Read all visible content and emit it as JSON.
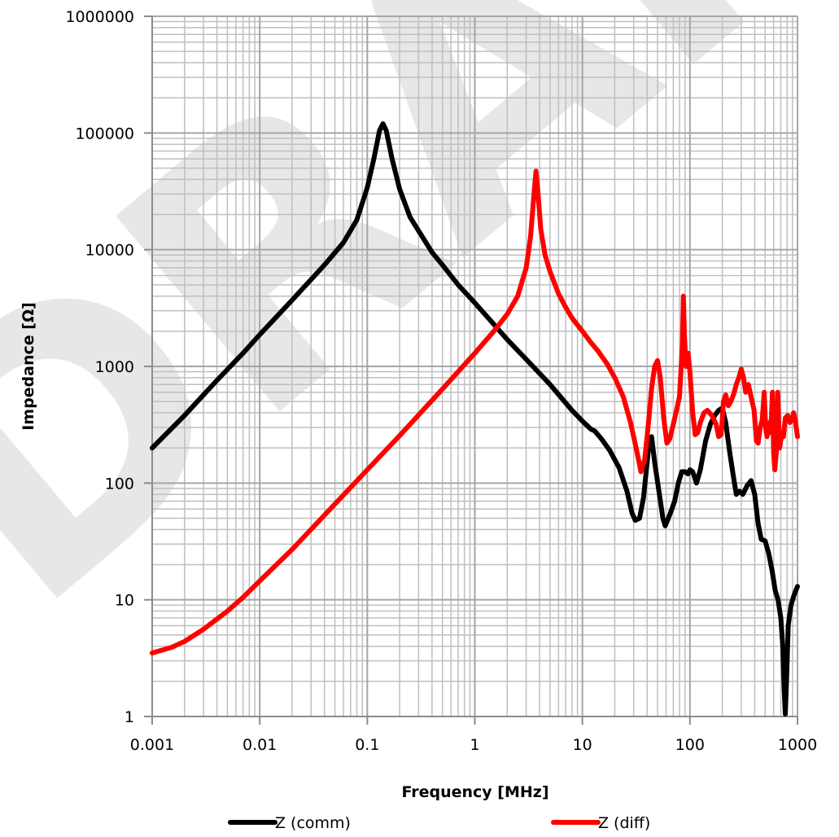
{
  "watermark": "DRAFT",
  "chart_data": {
    "type": "line",
    "xlabel": "Frequency [MHz]",
    "ylabel": "Impedance [Ω]",
    "xscale": "log",
    "yscale": "log",
    "xlim": [
      0.001,
      1000
    ],
    "ylim": [
      1,
      1000000
    ],
    "grid": true,
    "legend_position": "bottom",
    "x_ticks": [
      0.001,
      0.01,
      0.1,
      1,
      10,
      100,
      1000
    ],
    "x_tick_labels": [
      "0.001",
      "0.01",
      "0.1",
      "1",
      "10",
      "100",
      "1000"
    ],
    "y_ticks": [
      1,
      10,
      100,
      1000,
      10000,
      100000,
      1000000
    ],
    "y_tick_labels": [
      "1",
      "10",
      "100",
      "1000",
      "10000",
      "100000",
      "1000000"
    ],
    "series": [
      {
        "name": "Z (comm)",
        "color": "#000000",
        "points": [
          [
            0.001,
            200
          ],
          [
            0.002,
            380
          ],
          [
            0.004,
            760
          ],
          [
            0.007,
            1300
          ],
          [
            0.01,
            1870
          ],
          [
            0.02,
            3700
          ],
          [
            0.04,
            7400
          ],
          [
            0.06,
            11500
          ],
          [
            0.08,
            18000
          ],
          [
            0.1,
            34000
          ],
          [
            0.115,
            60000
          ],
          [
            0.13,
            105000
          ],
          [
            0.14,
            120000
          ],
          [
            0.15,
            105000
          ],
          [
            0.17,
            60000
          ],
          [
            0.2,
            33000
          ],
          [
            0.25,
            19000
          ],
          [
            0.3,
            14500
          ],
          [
            0.4,
            9500
          ],
          [
            0.5,
            7400
          ],
          [
            0.7,
            5000
          ],
          [
            1,
            3500
          ],
          [
            1.5,
            2300
          ],
          [
            2,
            1700
          ],
          [
            3,
            1150
          ],
          [
            5,
            700
          ],
          [
            8,
            420
          ],
          [
            10,
            340
          ],
          [
            12,
            290
          ],
          [
            13,
            280
          ],
          [
            15,
            240
          ],
          [
            18,
            190
          ],
          [
            22,
            135
          ],
          [
            26,
            85
          ],
          [
            29,
            55
          ],
          [
            31,
            48
          ],
          [
            34,
            50
          ],
          [
            37,
            75
          ],
          [
            40,
            150
          ],
          [
            42,
            230
          ],
          [
            44,
            250
          ],
          [
            47,
            150
          ],
          [
            52,
            80
          ],
          [
            56,
            50
          ],
          [
            59,
            43
          ],
          [
            63,
            50
          ],
          [
            68,
            60
          ],
          [
            72,
            70
          ],
          [
            78,
            100
          ],
          [
            84,
            125
          ],
          [
            90,
            125
          ],
          [
            96,
            120
          ],
          [
            100,
            130
          ],
          [
            106,
            125
          ],
          [
            115,
            100
          ],
          [
            125,
            130
          ],
          [
            140,
            230
          ],
          [
            155,
            320
          ],
          [
            170,
            380
          ],
          [
            185,
            420
          ],
          [
            200,
            440
          ],
          [
            215,
            330
          ],
          [
            235,
            180
          ],
          [
            255,
            110
          ],
          [
            270,
            80
          ],
          [
            290,
            85
          ],
          [
            310,
            80
          ],
          [
            340,
            95
          ],
          [
            370,
            105
          ],
          [
            400,
            80
          ],
          [
            430,
            45
          ],
          [
            460,
            33
          ],
          [
            500,
            32
          ],
          [
            540,
            25
          ],
          [
            580,
            18
          ],
          [
            620,
            12
          ],
          [
            660,
            10
          ],
          [
            700,
            7
          ],
          [
            730,
            4
          ],
          [
            750,
            1.8
          ],
          [
            770,
            1.05
          ],
          [
            790,
            2
          ],
          [
            820,
            6
          ],
          [
            870,
            9
          ],
          [
            930,
            11
          ],
          [
            1000,
            13
          ]
        ]
      },
      {
        "name": "Z (diff)",
        "color": "#ff0000",
        "points": [
          [
            0.001,
            3.5
          ],
          [
            0.0015,
            3.9
          ],
          [
            0.002,
            4.4
          ],
          [
            0.003,
            5.6
          ],
          [
            0.005,
            8
          ],
          [
            0.007,
            10.5
          ],
          [
            0.01,
            14.5
          ],
          [
            0.02,
            27
          ],
          [
            0.05,
            66
          ],
          [
            0.1,
            130
          ],
          [
            0.2,
            255
          ],
          [
            0.5,
            640
          ],
          [
            1,
            1300
          ],
          [
            1.5,
            2000
          ],
          [
            2,
            2800
          ],
          [
            2.5,
            4000
          ],
          [
            3,
            7000
          ],
          [
            3.3,
            13000
          ],
          [
            3.55,
            30000
          ],
          [
            3.7,
            47000
          ],
          [
            3.85,
            32000
          ],
          [
            4.1,
            15000
          ],
          [
            4.5,
            9000
          ],
          [
            5,
            6500
          ],
          [
            6,
            4200
          ],
          [
            7,
            3200
          ],
          [
            8,
            2600
          ],
          [
            10,
            2000
          ],
          [
            12,
            1600
          ],
          [
            14,
            1350
          ],
          [
            17,
            1050
          ],
          [
            20,
            800
          ],
          [
            24,
            550
          ],
          [
            28,
            330
          ],
          [
            32,
            190
          ],
          [
            35,
            125
          ],
          [
            38,
            160
          ],
          [
            41,
            320
          ],
          [
            44,
            650
          ],
          [
            47,
            1000
          ],
          [
            50,
            1120
          ],
          [
            53,
            800
          ],
          [
            57,
            360
          ],
          [
            61,
            220
          ],
          [
            65,
            240
          ],
          [
            70,
            320
          ],
          [
            75,
            420
          ],
          [
            80,
            550
          ],
          [
            85,
            1500
          ],
          [
            87,
            4000
          ],
          [
            89,
            1800
          ],
          [
            92,
            1000
          ],
          [
            96,
            1300
          ],
          [
            100,
            900
          ],
          [
            106,
            400
          ],
          [
            112,
            260
          ],
          [
            118,
            270
          ],
          [
            125,
            330
          ],
          [
            135,
            400
          ],
          [
            145,
            420
          ],
          [
            160,
            380
          ],
          [
            175,
            320
          ],
          [
            185,
            250
          ],
          [
            195,
            260
          ],
          [
            205,
            500
          ],
          [
            215,
            570
          ],
          [
            228,
            460
          ],
          [
            240,
            500
          ],
          [
            255,
            580
          ],
          [
            270,
            700
          ],
          [
            285,
            800
          ],
          [
            300,
            950
          ],
          [
            315,
            800
          ],
          [
            330,
            600
          ],
          [
            350,
            700
          ],
          [
            370,
            550
          ],
          [
            395,
            420
          ],
          [
            415,
            230
          ],
          [
            430,
            220
          ],
          [
            450,
            300
          ],
          [
            470,
            350
          ],
          [
            490,
            600
          ],
          [
            505,
            300
          ],
          [
            520,
            250
          ],
          [
            545,
            330
          ],
          [
            565,
            270
          ],
          [
            585,
            600
          ],
          [
            600,
            180
          ],
          [
            615,
            130
          ],
          [
            635,
            180
          ],
          [
            655,
            600
          ],
          [
            680,
            200
          ],
          [
            710,
            250
          ],
          [
            740,
            250
          ],
          [
            770,
            360
          ],
          [
            810,
            380
          ],
          [
            850,
            330
          ],
          [
            890,
            350
          ],
          [
            920,
            400
          ],
          [
            960,
            330
          ],
          [
            1000,
            250
          ]
        ]
      }
    ]
  }
}
